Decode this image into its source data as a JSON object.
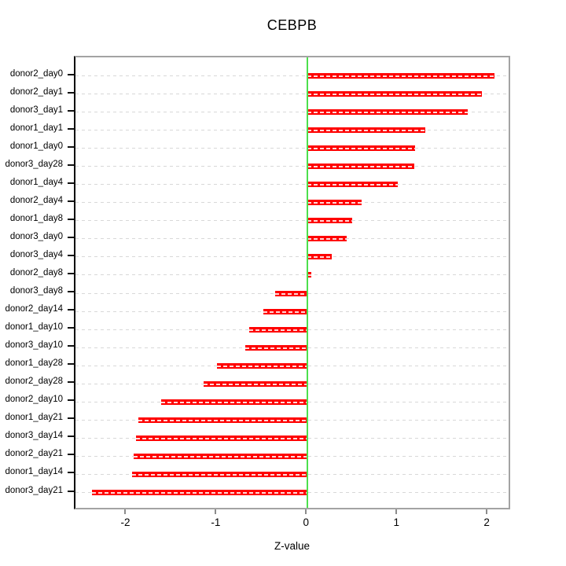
{
  "title": "CEBPB",
  "xlabel": "Z-value",
  "chart_data": {
    "type": "bar",
    "orientation": "horizontal",
    "title": "CEBPB",
    "xlabel": "Z-value",
    "categories": [
      "donor2_day0",
      "donor2_day1",
      "donor3_day1",
      "donor1_day1",
      "donor1_day0",
      "donor3_day28",
      "donor1_day4",
      "donor2_day4",
      "donor1_day8",
      "donor3_day0",
      "donor3_day4",
      "donor2_day8",
      "donor3_day8",
      "donor2_day14",
      "donor1_day10",
      "donor3_day10",
      "donor1_day28",
      "donor2_day28",
      "donor2_day10",
      "donor1_day21",
      "donor3_day14",
      "donor2_day21",
      "donor1_day14",
      "donor3_day21"
    ],
    "values": [
      2.07,
      1.93,
      1.77,
      1.3,
      1.19,
      1.18,
      1.0,
      0.6,
      0.49,
      0.43,
      0.27,
      0.04,
      -0.36,
      -0.49,
      -0.65,
      -0.69,
      -1.0,
      -1.15,
      -1.62,
      -1.87,
      -1.9,
      -1.93,
      -1.94,
      -2.39
    ],
    "x_ticks": [
      -2,
      -1,
      0,
      1,
      2
    ],
    "xlim": [
      -2.57,
      2.26
    ],
    "grid": "dashed horizontal line per category",
    "legend": "none",
    "zero_line": 0,
    "colors": {
      "bar": "#ff0000",
      "bar_dash_overlay": "#ffffff",
      "zero_line": "#4ce04c",
      "grid": "#d8d8d8",
      "box_border": "#a3a3a3",
      "y_axis": "#000000",
      "x_tick": "#8c8c8c",
      "background": "#ffffff"
    }
  }
}
